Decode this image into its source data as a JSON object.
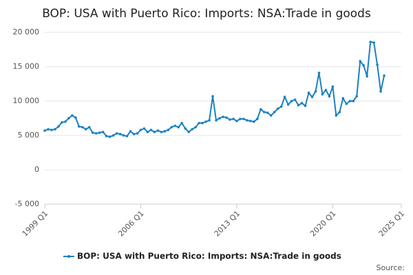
{
  "chart_data": {
    "type": "line",
    "title": "BOP: USA with Puerto Rico: Imports: NSA:Trade in goods",
    "source": "Source:",
    "x": [
      "1999 Q1",
      "1999 Q2",
      "1999 Q3",
      "1999 Q4",
      "2000 Q1",
      "2000 Q2",
      "2000 Q3",
      "2000 Q4",
      "2001 Q1",
      "2001 Q2",
      "2001 Q3",
      "2001 Q4",
      "2002 Q1",
      "2002 Q2",
      "2002 Q3",
      "2002 Q4",
      "2003 Q1",
      "2003 Q2",
      "2003 Q3",
      "2003 Q4",
      "2004 Q1",
      "2004 Q2",
      "2004 Q3",
      "2004 Q4",
      "2005 Q1",
      "2005 Q2",
      "2005 Q3",
      "2005 Q4",
      "2006 Q1",
      "2006 Q2",
      "2006 Q3",
      "2006 Q4",
      "2007 Q1",
      "2007 Q2",
      "2007 Q3",
      "2007 Q4",
      "2008 Q1",
      "2008 Q2",
      "2008 Q3",
      "2008 Q4",
      "2009 Q1",
      "2009 Q2",
      "2009 Q3",
      "2009 Q4",
      "2010 Q1",
      "2010 Q2",
      "2010 Q3",
      "2010 Q4",
      "2011 Q1",
      "2011 Q2",
      "2011 Q3",
      "2011 Q4",
      "2012 Q1",
      "2012 Q2",
      "2012 Q3",
      "2012 Q4",
      "2013 Q1",
      "2013 Q2",
      "2013 Q3",
      "2013 Q4",
      "2014 Q1",
      "2014 Q2",
      "2014 Q3",
      "2014 Q4",
      "2015 Q1",
      "2015 Q2",
      "2015 Q3",
      "2015 Q4",
      "2016 Q1",
      "2016 Q2",
      "2016 Q3",
      "2016 Q4",
      "2017 Q1",
      "2017 Q2",
      "2017 Q3",
      "2017 Q4",
      "2018 Q1",
      "2018 Q2",
      "2018 Q3",
      "2018 Q4",
      "2019 Q1",
      "2019 Q2",
      "2019 Q3",
      "2019 Q4",
      "2020 Q1",
      "2020 Q2",
      "2020 Q3",
      "2020 Q4",
      "2021 Q1",
      "2021 Q2",
      "2021 Q3",
      "2021 Q4",
      "2022 Q1",
      "2022 Q2",
      "2022 Q3",
      "2022 Q4",
      "2023 Q1",
      "2023 Q2",
      "2023 Q3",
      "2023 Q4"
    ],
    "series": [
      {
        "name": "BOP: USA with Puerto Rico: Imports: NSA:Trade in goods",
        "color": "#1a80c0",
        "values": [
          5700,
          5900,
          5800,
          5900,
          6300,
          6900,
          7000,
          7500,
          7900,
          7600,
          6300,
          6200,
          5900,
          6200,
          5400,
          5300,
          5400,
          5500,
          4900,
          4800,
          5000,
          5300,
          5200,
          5000,
          4900,
          5600,
          5200,
          5300,
          5800,
          6000,
          5500,
          5800,
          5500,
          5700,
          5500,
          5600,
          5800,
          6200,
          6400,
          6200,
          6800,
          6000,
          5500,
          5900,
          6200,
          6800,
          6800,
          7000,
          7200,
          10700,
          7200,
          7500,
          7700,
          7600,
          7300,
          7400,
          7100,
          7400,
          7400,
          7200,
          7100,
          7000,
          7400,
          8800,
          8400,
          8300,
          7900,
          8400,
          8900,
          9200,
          10600,
          9500,
          10000,
          10200,
          9400,
          9700,
          9300,
          11200,
          10600,
          11400,
          14100,
          11000,
          11600,
          10700,
          12100,
          7900,
          8400,
          10400,
          9600,
          10000,
          10000,
          10700,
          15800,
          15200,
          13600,
          18600,
          18500,
          15300,
          11400,
          13700
        ]
      }
    ],
    "xlim": [
      "1999 Q1",
      "2025 Q1"
    ],
    "xticks": [
      "1999 Q1",
      "2006 Q1",
      "2013 Q1",
      "2020 Q1",
      "2025 Q1"
    ],
    "ylim": [
      -5000,
      20000
    ],
    "yticks": [
      {
        "value": -5000,
        "label": "-5 000"
      },
      0,
      {
        "value": 5000,
        "label": "5 000"
      },
      {
        "value": 10000,
        "label": "10 000"
      },
      {
        "value": 15000,
        "label": "15 000"
      },
      {
        "value": 20000,
        "label": "20 000"
      }
    ],
    "grid": true
  }
}
